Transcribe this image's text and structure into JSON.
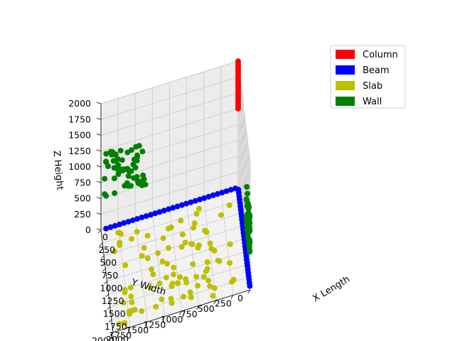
{
  "chart_data": {
    "type": "scatter",
    "projection": "3d",
    "xlabel": "X Length",
    "ylabel": "Y Width",
    "zlabel": "Z Height",
    "xlim": [
      0,
      2000
    ],
    "ylim": [
      0,
      2000
    ],
    "zlim": [
      0,
      2000
    ],
    "x_ticks": [
      0,
      250,
      500,
      750,
      1000,
      1250,
      1500,
      1750,
      2000
    ],
    "y_ticks": [
      0,
      250,
      500,
      750,
      1000,
      1250,
      1500,
      1750,
      2000
    ],
    "z_ticks": [
      0,
      250,
      500,
      750,
      1000,
      1250,
      1500,
      1750,
      2000
    ],
    "grid": true,
    "legend_position": "top-right",
    "series": [
      {
        "name": "Column",
        "color": "#ff0000",
        "description_x": 0,
        "description_y": 0,
        "z_range": [
          1250,
          2000
        ],
        "points": 23
      },
      {
        "name": "Beam",
        "color": "#0000ff",
        "points_note": "two lines along axes at z=0"
      },
      {
        "name": "Slab",
        "color": "#bfbf00",
        "points_note": "scattered on floor plane z=0"
      },
      {
        "name": "Wall",
        "color": "#008000",
        "points_note": "two vertical walls x=0 and y=0"
      }
    ]
  }
}
